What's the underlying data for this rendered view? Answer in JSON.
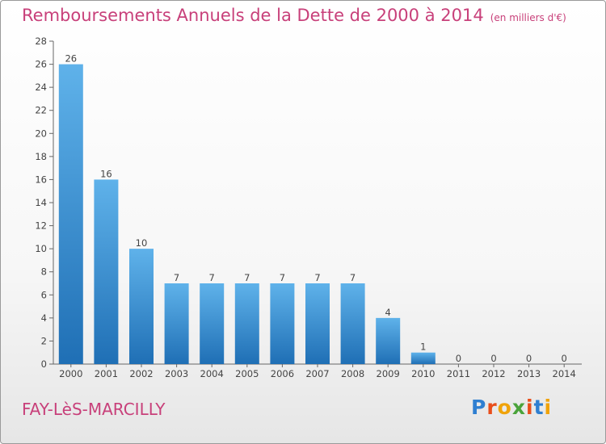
{
  "header": {
    "title": "Remboursements Annuels de la Dette de 2000 à 2014",
    "subtitle": "(en milliers d'€)"
  },
  "footer": {
    "commune": "FAY-LèS-MARCILLY",
    "logo_text": "Proxiti"
  },
  "colors": {
    "title": "#c8407a",
    "bar_light": "#5fb2ea",
    "bar_dark": "#1f6fb5",
    "logo_letters": [
      "#2f7fd1",
      "#e94e1b",
      "#f0a30a",
      "#4aa33a",
      "#e94e1b",
      "#2f7fd1",
      "#f0a30a"
    ]
  },
  "chart_data": {
    "type": "bar",
    "categories": [
      "2000",
      "2001",
      "2002",
      "2003",
      "2004",
      "2005",
      "2006",
      "2007",
      "2008",
      "2009",
      "2010",
      "2011",
      "2012",
      "2013",
      "2014"
    ],
    "values": [
      26,
      16,
      10,
      7,
      7,
      7,
      7,
      7,
      7,
      4,
      1,
      0,
      0,
      0,
      0
    ],
    "title": "Remboursements Annuels de la Dette de 2000 à 2014",
    "xlabel": "",
    "ylabel": "",
    "ylim": [
      0,
      28
    ],
    "yticks": [
      0,
      2,
      4,
      6,
      8,
      10,
      12,
      14,
      16,
      18,
      20,
      22,
      24,
      26,
      28
    ],
    "grid": false,
    "legend": "none"
  }
}
